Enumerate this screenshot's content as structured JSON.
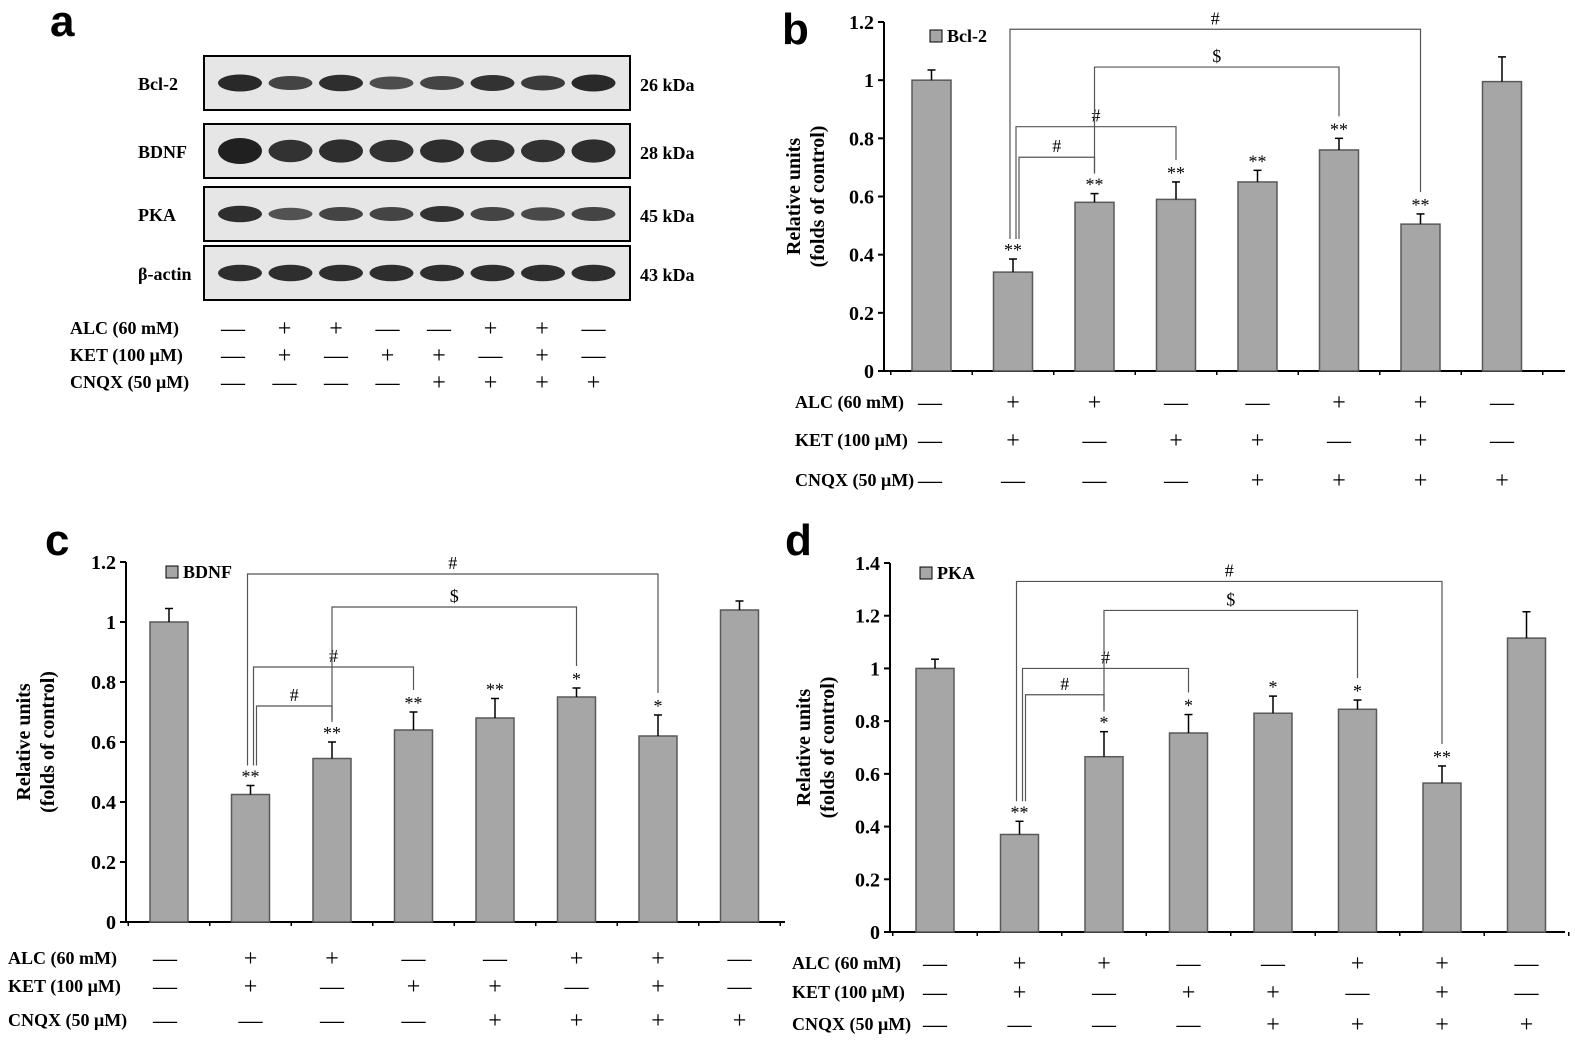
{
  "conditions": {
    "rows": [
      {
        "label": "ALC (60 mM)",
        "signs": [
          "—",
          "+",
          "+",
          "—",
          "—",
          "+",
          "+",
          "—"
        ]
      },
      {
        "label": "KET (100 μM)",
        "signs": [
          "—",
          "+",
          "—",
          "+",
          "+",
          "—",
          "+",
          "—"
        ]
      },
      {
        "label": "CNQX (50 μM)",
        "signs": [
          "—",
          "—",
          "—",
          "—",
          "+",
          "+",
          "+",
          "+"
        ]
      }
    ]
  },
  "blot": {
    "letter": "a",
    "lanes": 8,
    "bands": [
      {
        "name": "Bcl-2",
        "kda": "26 kDa",
        "intensity": [
          0.9,
          0.6,
          0.85,
          0.5,
          0.6,
          0.8,
          0.7,
          0.9
        ]
      },
      {
        "name": "BDNF",
        "kda": "28 kDa",
        "intensity": [
          1.0,
          0.8,
          0.85,
          0.8,
          0.85,
          0.8,
          0.8,
          0.85
        ]
      },
      {
        "name": "PKA",
        "kda": "45 kDa",
        "intensity": [
          0.85,
          0.45,
          0.6,
          0.6,
          0.8,
          0.6,
          0.55,
          0.6
        ]
      },
      {
        "name": "β-actin",
        "kda": "43 kDa",
        "intensity": [
          0.85,
          0.85,
          0.85,
          0.85,
          0.85,
          0.85,
          0.85,
          0.85
        ]
      }
    ]
  },
  "chart_data": [
    {
      "type": "bar",
      "letter": "b",
      "legend": "Bcl-2",
      "ylabel": "Relative units",
      "ylabel2": "(folds of control)",
      "ylim": [
        0,
        1.2
      ],
      "yticks": [
        "0",
        "0.2",
        "0.4",
        "0.6",
        "0.8",
        "1",
        "1.2"
      ],
      "values": [
        1.0,
        0.34,
        0.58,
        0.59,
        0.65,
        0.76,
        0.505,
        0.995
      ],
      "errors": [
        0.035,
        0.045,
        0.03,
        0.06,
        0.04,
        0.04,
        0.035,
        0.085
      ],
      "stars": [
        "",
        "**",
        "**",
        "**",
        "**",
        "**",
        "**",
        ""
      ],
      "brackets": [
        {
          "from": 1,
          "to": 2,
          "symbol": "#",
          "level": 0.735
        },
        {
          "from": 1,
          "to": 3,
          "symbol": "#",
          "level": 0.84
        },
        {
          "from": 2,
          "to": 5,
          "symbol": "$",
          "level": 1.045
        },
        {
          "from": 1,
          "to": 6,
          "symbol": "#",
          "level": 1.175
        }
      ]
    },
    {
      "type": "bar",
      "letter": "c",
      "legend": "BDNF",
      "ylabel": "Relative units",
      "ylabel2": "(folds of control)",
      "ylim": [
        0,
        1.2
      ],
      "yticks": [
        "0",
        "0.2",
        "0.4",
        "0.6",
        "0.8",
        "1",
        "1.2"
      ],
      "values": [
        1.0,
        0.425,
        0.545,
        0.64,
        0.68,
        0.75,
        0.62,
        1.04
      ],
      "errors": [
        0.045,
        0.03,
        0.055,
        0.06,
        0.065,
        0.03,
        0.07,
        0.03
      ],
      "stars": [
        "",
        "**",
        "**",
        "**",
        "**",
        "*",
        "*",
        ""
      ],
      "brackets": [
        {
          "from": 1,
          "to": 2,
          "symbol": "#",
          "level": 0.72
        },
        {
          "from": 1,
          "to": 3,
          "symbol": "#",
          "level": 0.85
        },
        {
          "from": 2,
          "to": 5,
          "symbol": "$",
          "level": 1.05
        },
        {
          "from": 1,
          "to": 6,
          "symbol": "#",
          "level": 1.16
        }
      ]
    },
    {
      "type": "bar",
      "letter": "d",
      "legend": "PKA",
      "ylabel": "Relative units",
      "ylabel2": "(folds of control)",
      "ylim": [
        0,
        1.4
      ],
      "yticks": [
        "0",
        "0.2",
        "0.4",
        "0.6",
        "0.8",
        "1",
        "1.2",
        "1.4"
      ],
      "values": [
        1.0,
        0.37,
        0.665,
        0.755,
        0.83,
        0.845,
        0.565,
        1.115
      ],
      "errors": [
        0.035,
        0.05,
        0.095,
        0.07,
        0.065,
        0.035,
        0.065,
        0.1
      ],
      "stars": [
        "",
        "**",
        "*",
        "*",
        "*",
        "*",
        "**",
        ""
      ],
      "brackets": [
        {
          "from": 1,
          "to": 2,
          "symbol": "#",
          "level": 0.9
        },
        {
          "from": 1,
          "to": 3,
          "symbol": "#",
          "level": 1.0
        },
        {
          "from": 2,
          "to": 5,
          "symbol": "$",
          "level": 1.22
        },
        {
          "from": 1,
          "to": 6,
          "symbol": "#",
          "level": 1.33
        }
      ]
    }
  ]
}
